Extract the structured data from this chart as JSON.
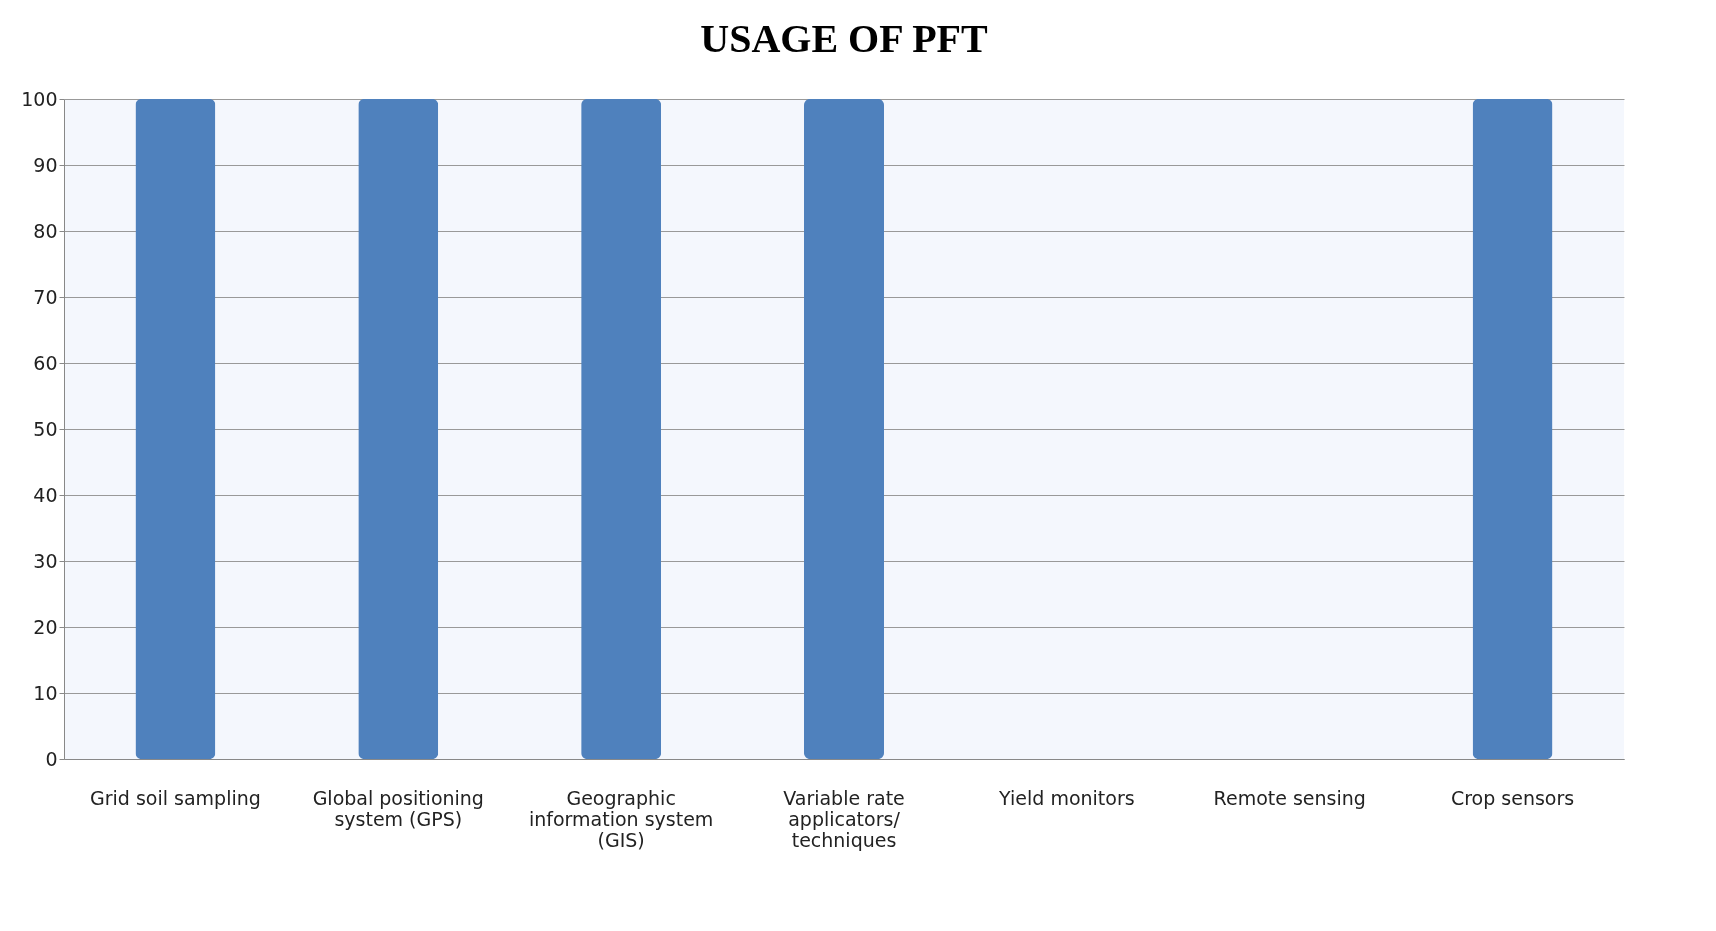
{
  "chart_data": {
    "type": "bar",
    "title": "USAGE OF PFT",
    "categories": [
      "Grid soil sampling",
      "Global positioning system (GPS)",
      "Geographic information system (GIS)",
      "Variable rate applicators/ techniques",
      "Yield monitors",
      "Remote sensing",
      "Crop sensors"
    ],
    "values": [
      100,
      100,
      100,
      100,
      0,
      0,
      100
    ],
    "color": "#4f81bd",
    "ylim": [
      0,
      100
    ],
    "yticks": [
      0,
      10,
      20,
      30,
      40,
      50,
      60,
      70,
      80,
      90,
      100
    ],
    "grid": "y"
  }
}
